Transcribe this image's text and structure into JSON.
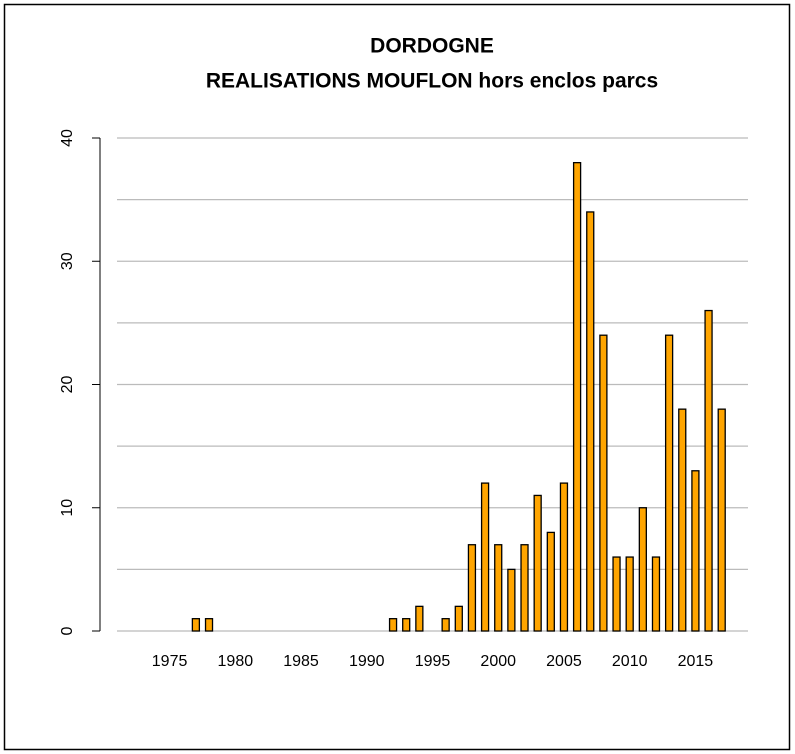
{
  "chart_data": {
    "type": "bar",
    "title": "DORDOGNE",
    "subtitle": "REALISATIONS MOUFLON hors enclos parcs",
    "x": [
      1973,
      1974,
      1975,
      1976,
      1977,
      1978,
      1979,
      1980,
      1981,
      1982,
      1983,
      1984,
      1985,
      1986,
      1987,
      1988,
      1989,
      1990,
      1991,
      1992,
      1993,
      1994,
      1995,
      1996,
      1997,
      1998,
      1999,
      2000,
      2001,
      2002,
      2003,
      2004,
      2005,
      2006,
      2007,
      2008,
      2009,
      2010,
      2011,
      2012,
      2013,
      2014,
      2015,
      2016,
      2017
    ],
    "values": [
      0,
      0,
      0,
      0,
      1,
      1,
      0,
      0,
      0,
      0,
      0,
      0,
      0,
      0,
      0,
      0,
      0,
      0,
      0,
      1,
      1,
      2,
      0,
      1,
      2,
      7,
      12,
      7,
      5,
      7,
      11,
      8,
      12,
      38,
      34,
      24,
      6,
      6,
      10,
      6,
      24,
      18,
      13,
      26,
      18
    ],
    "color": "#FFA500",
    "xlim": [
      1971,
      2019
    ],
    "xticks": [
      1975,
      1980,
      1985,
      1990,
      1995,
      2000,
      2005,
      2010,
      2015
    ],
    "ylim": [
      0,
      40
    ],
    "yticks": [
      0,
      10,
      20,
      30,
      40
    ],
    "minor_yticks": [
      5,
      15,
      25,
      35
    ],
    "grid": true
  }
}
